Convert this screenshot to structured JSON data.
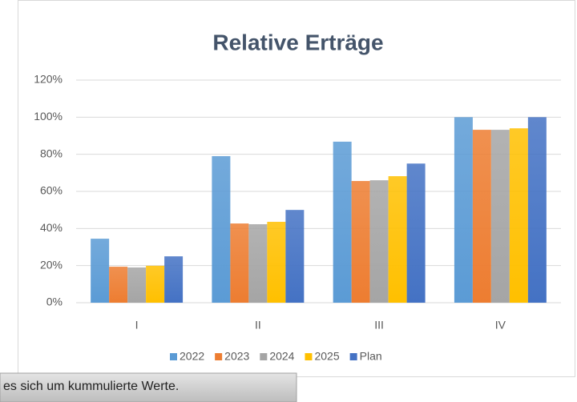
{
  "chart_data": {
    "type": "bar",
    "title": "Relative Erträge",
    "categories": [
      "I",
      "II",
      "III",
      "IV"
    ],
    "series": [
      {
        "name": "2022",
        "color": "#5b9bd5",
        "values": [
          34.5,
          79,
          86.8,
          100
        ]
      },
      {
        "name": "2023",
        "color": "#ed7d31",
        "values": [
          19.4,
          42.7,
          65.6,
          93.2
        ]
      },
      {
        "name": "2024",
        "color": "#a5a5a5",
        "values": [
          19,
          42.3,
          66,
          93.2
        ]
      },
      {
        "name": "2025",
        "color": "#ffc000",
        "values": [
          19.9,
          43.6,
          68.2,
          94
        ]
      },
      {
        "name": "Plan",
        "color": "#4472c4",
        "values": [
          25,
          50,
          75,
          100
        ]
      }
    ],
    "ylim": [
      0,
      120
    ],
    "yticks": [
      {
        "value": 0,
        "label": "0%"
      },
      {
        "value": 20,
        "label": "20%"
      },
      {
        "value": 40,
        "label": "40%"
      },
      {
        "value": 60,
        "label": "60%"
      },
      {
        "value": 80,
        "label": "80%"
      },
      {
        "value": 100,
        "label": "100%"
      },
      {
        "value": 120,
        "label": "120%"
      }
    ],
    "grid": true,
    "legend": "bottom"
  },
  "note": "es sich um kummulierte Werte."
}
